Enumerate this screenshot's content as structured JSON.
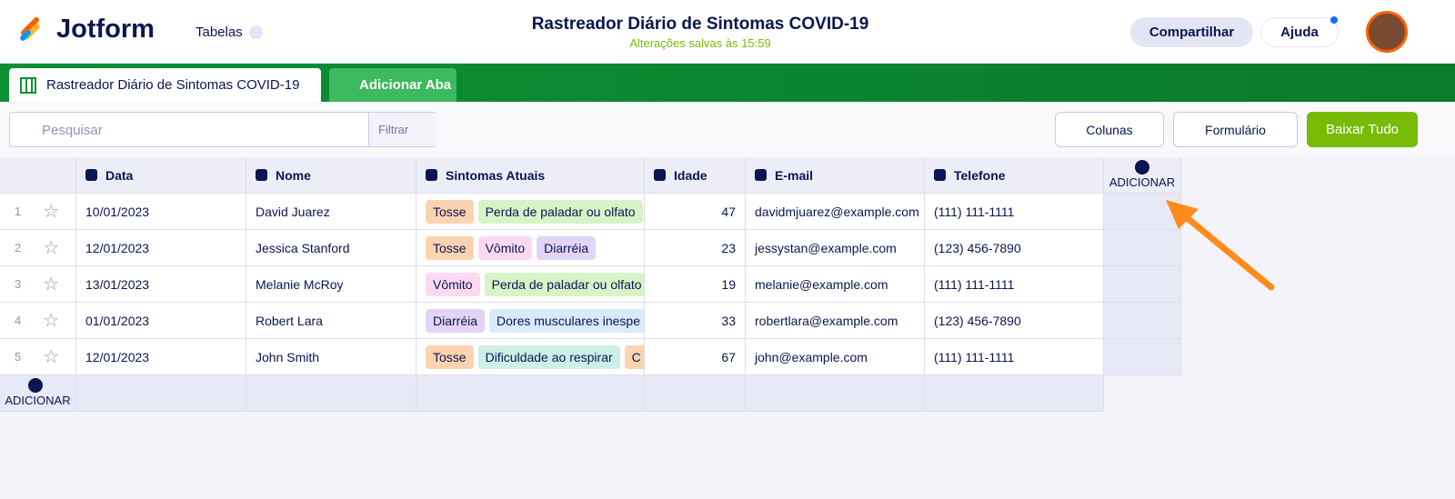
{
  "header": {
    "logo": "Jotform",
    "menu": "Tabelas",
    "title": "Rastreador Diário de Sintomas COVID-19",
    "status": "Alterações salvas às 15:59",
    "share": "Compartilhar",
    "help": "Ajuda"
  },
  "tabs": {
    "active": "Rastreador Diário de Sintomas COVID-19",
    "add": "Adicionar Aba"
  },
  "toolbar": {
    "search": "Pesquisar",
    "filter": "Filtrar",
    "columns": "Colunas",
    "form": "Formulário",
    "download": "Baixar Tudo"
  },
  "table": {
    "columns": [
      "Data",
      "Nome",
      "Sintomas Atuais",
      "Idade",
      "E-mail",
      "Telefone"
    ],
    "add_column": "ADICIONAR",
    "add_row": "ADICIONAR",
    "rows": [
      {
        "index": 1,
        "date": "10/01/2023",
        "name": "David Juarez",
        "symptoms": [
          {
            "label": "Tosse",
            "color": "#fbd3b0"
          },
          {
            "label": "Perda de paladar ou olfato",
            "color": "#d9f3c8"
          }
        ],
        "age": 47,
        "email": "davidmjuarez@example.com",
        "phone": "(111) 111-1111"
      },
      {
        "index": 2,
        "date": "12/01/2023",
        "name": "Jessica Stanford",
        "symptoms": [
          {
            "label": "Tosse",
            "color": "#fbd3b0"
          },
          {
            "label": "Vômito",
            "color": "#fcd9f0"
          },
          {
            "label": "Diarréia",
            "color": "#e2d4f7"
          }
        ],
        "age": 23,
        "email": "jessystan@example.com",
        "phone": "(123) 456-7890"
      },
      {
        "index": 3,
        "date": "13/01/2023",
        "name": "Melanie McRoy",
        "symptoms": [
          {
            "label": "Vômito",
            "color": "#fcd9f0"
          },
          {
            "label": "Perda de paladar ou olfato",
            "color": "#d9f3c8"
          }
        ],
        "age": 19,
        "email": "melanie@example.com",
        "phone": "(111) 111-1111"
      },
      {
        "index": 4,
        "date": "01/01/2023",
        "name": "Robert Lara",
        "symptoms": [
          {
            "label": "Diarréia",
            "color": "#e2d4f7"
          },
          {
            "label": "Dores musculares inespe",
            "color": "#d8eafc"
          }
        ],
        "age": 33,
        "email": "robertlara@example.com",
        "phone": "(123) 456-7890"
      },
      {
        "index": 5,
        "date": "12/01/2023",
        "name": "John Smith",
        "symptoms": [
          {
            "label": "Tosse",
            "color": "#fbd3b0"
          },
          {
            "label": "Dificuldade ao respirar",
            "color": "#cdefe6"
          },
          {
            "label": "C",
            "color": "#fbd3b0"
          }
        ],
        "age": 67,
        "email": "john@example.com",
        "phone": "(111) 111-1111"
      }
    ]
  }
}
